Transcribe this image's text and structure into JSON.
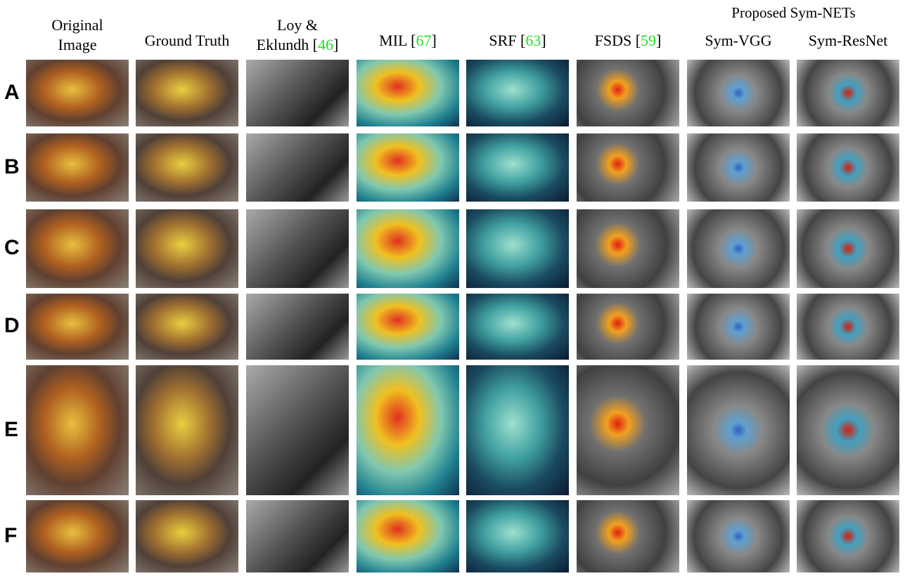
{
  "header": {
    "group_label": "Proposed Sym-NETs"
  },
  "columns": [
    {
      "lines": [
        "Original",
        "Image"
      ]
    },
    {
      "lines": [
        "Ground Truth"
      ]
    },
    {
      "lines": [
        "Loy &",
        "Eklundh ["
      ],
      "ref": "46",
      "after": "]"
    },
    {
      "lines": [
        "MIL ["
      ],
      "ref": "67",
      "after": "]"
    },
    {
      "lines": [
        "SRF ["
      ],
      "ref": "63",
      "after": "]"
    },
    {
      "lines": [
        "FSDS ["
      ],
      "ref": "59",
      "after": "]"
    },
    {
      "lines": [
        "Sym-VGG"
      ]
    },
    {
      "lines": [
        "Sym-ResNet"
      ]
    }
  ],
  "rows": [
    {
      "label": "A"
    },
    {
      "label": "B"
    },
    {
      "label": "C"
    },
    {
      "label": "D"
    },
    {
      "label": "E"
    },
    {
      "label": "F"
    }
  ]
}
